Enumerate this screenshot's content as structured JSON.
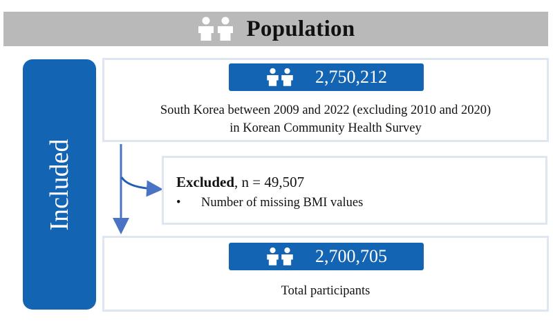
{
  "header": {
    "title": "Population",
    "icon": "people-icon"
  },
  "sidebar": {
    "label": "Included"
  },
  "population": {
    "count": "2,750,212",
    "description_line1": "South Korea between 2009 and 2022 (excluding 2010 and 2020)",
    "description_line2": "in Korean Community Health Survey"
  },
  "excluded": {
    "title": "Excluded",
    "count_text": ", n = 49,507",
    "bullet": "•",
    "items": [
      "Number of missing BMI values"
    ]
  },
  "final": {
    "count": "2,700,705",
    "description": "Total participants"
  },
  "colors": {
    "accent": "#1464b4",
    "header_bg": "#b9b9b9",
    "box_border": "#dde6f1",
    "arrow": "#4a73c4"
  }
}
